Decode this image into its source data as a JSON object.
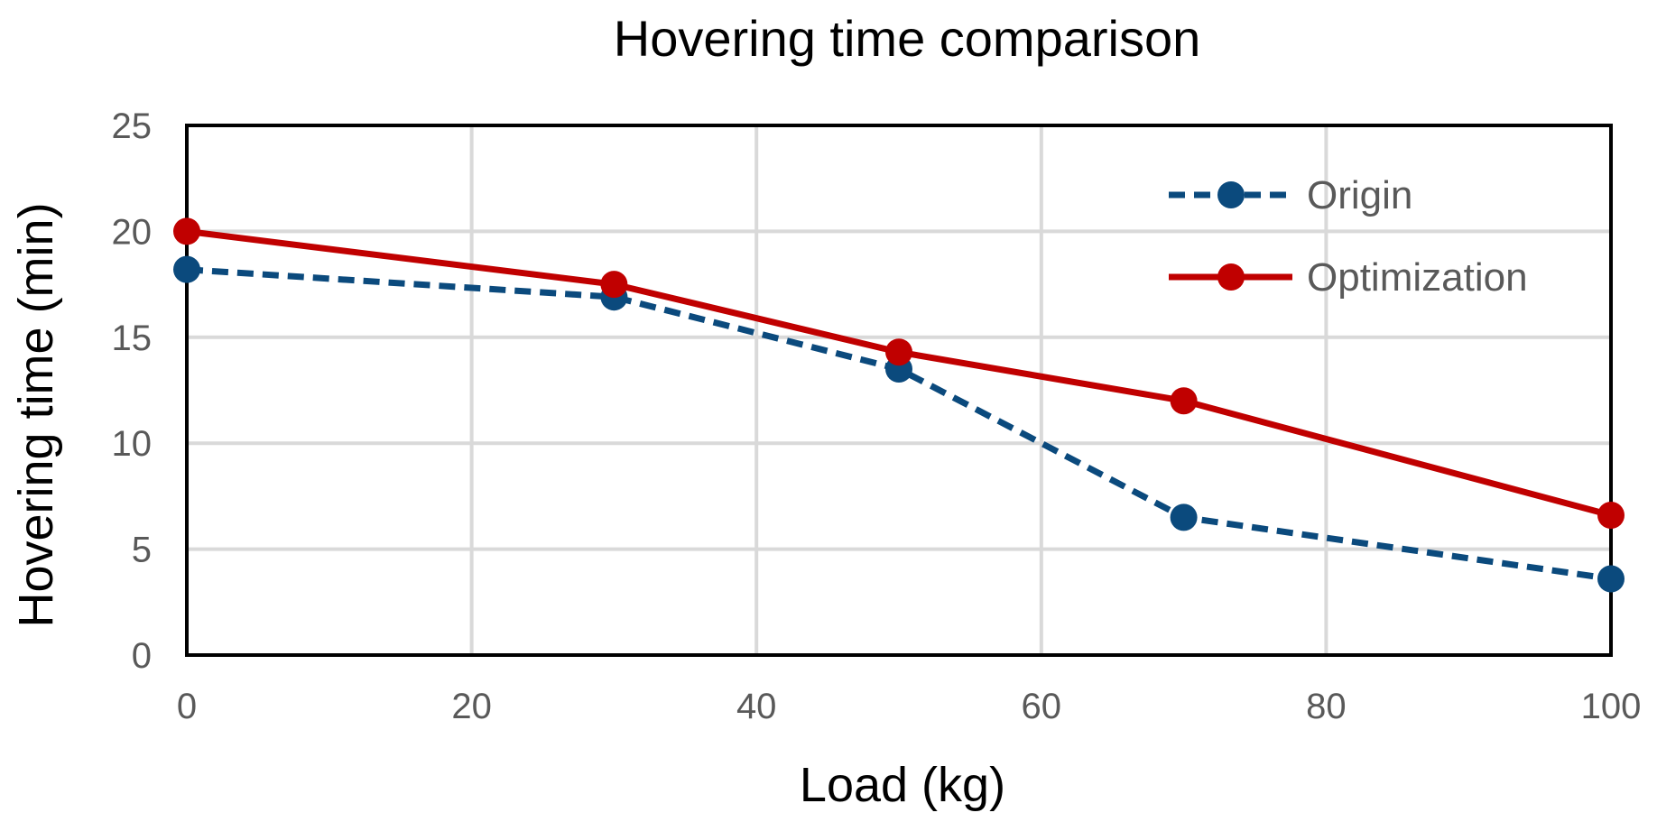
{
  "chart_data": {
    "type": "line",
    "title": "Hovering time comparison",
    "xlabel": "Load (kg)",
    "ylabel": "Hovering time (min)",
    "xlim": [
      0,
      100
    ],
    "ylim": [
      0,
      25
    ],
    "xticks": [
      0,
      20,
      40,
      60,
      80,
      100
    ],
    "yticks": [
      0,
      5,
      10,
      15,
      20,
      25
    ],
    "grid": true,
    "legend_position": "top-right",
    "series": [
      {
        "name": "Origin",
        "color": "#0b4a7d",
        "line_style": "dashed",
        "x": [
          0,
          30,
          50,
          70,
          100
        ],
        "y": [
          18.2,
          16.9,
          13.5,
          6.5,
          3.6
        ]
      },
      {
        "name": "Optimization",
        "color": "#c00000",
        "line_style": "solid",
        "x": [
          0,
          30,
          50,
          70,
          100
        ],
        "y": [
          20.0,
          17.5,
          14.3,
          12.0,
          6.6
        ]
      }
    ]
  }
}
